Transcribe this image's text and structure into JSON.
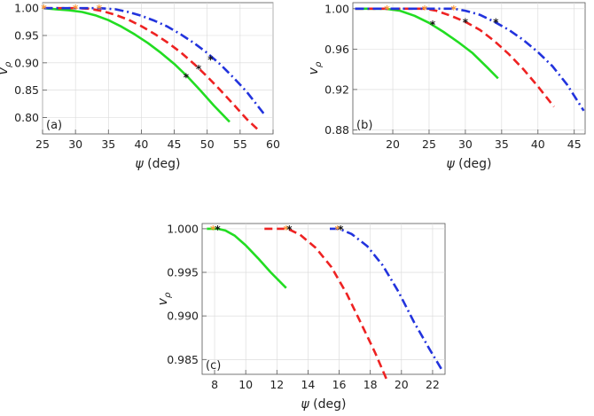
{
  "colors": {
    "green": "#22dd22",
    "red": "#ee2222",
    "blue": "#2233dd",
    "orange_marker": "#ff9933",
    "black_marker": "#111111",
    "grid": "#d8d8d8"
  },
  "chart_data": [
    {
      "panel": "(a)",
      "type": "line",
      "xlabel_symbol": "ψ",
      "xlabel_unit": "(deg)",
      "ylabel": "v_ρ",
      "xlim": [
        25,
        60
      ],
      "ylim": [
        0.77,
        1.01
      ],
      "xticks": [
        25,
        30,
        35,
        40,
        45,
        50,
        55,
        60
      ],
      "xtick_labels": [
        "25",
        "30",
        "35",
        "40",
        "45",
        "50",
        "55",
        "60"
      ],
      "yticks": [
        0.8,
        0.85,
        0.9,
        0.95,
        1.0
      ],
      "ytick_labels": [
        "0.80",
        "0.85",
        "0.90",
        "0.95",
        "1.00"
      ],
      "grid": true,
      "series": [
        {
          "color": "green",
          "style": "solid",
          "x": [
            25.2,
            27,
            29,
            31,
            33,
            35,
            37,
            39,
            41,
            43,
            45,
            47,
            49,
            51,
            53.4
          ],
          "y": [
            1.0,
            0.998,
            0.996,
            0.993,
            0.987,
            0.978,
            0.966,
            0.952,
            0.936,
            0.918,
            0.898,
            0.875,
            0.849,
            0.822,
            0.792
          ],
          "orange_star": [
            25.2,
            1.0
          ],
          "black_star": [
            46.8,
            0.875
          ]
        },
        {
          "color": "red",
          "style": "dashed",
          "x": [
            25.2,
            28,
            30,
            32,
            34,
            36,
            38,
            40,
            42,
            44,
            46,
            48,
            50,
            52,
            54,
            56,
            57.6
          ],
          "y": [
            1.0,
            1.0,
            1.0,
            0.999,
            0.995,
            0.988,
            0.979,
            0.967,
            0.953,
            0.937,
            0.919,
            0.898,
            0.875,
            0.85,
            0.824,
            0.797,
            0.779
          ],
          "orange_star": [
            30.0,
            1.0
          ],
          "black_star": [
            48.7,
            0.89
          ]
        },
        {
          "color": "blue",
          "style": "dash-dot",
          "x": [
            25.2,
            30,
            33.6,
            36,
            38,
            40,
            42,
            44,
            46,
            48,
            50,
            52,
            54,
            56,
            58.6
          ],
          "y": [
            1.0,
            1.0,
            1.0,
            0.998,
            0.993,
            0.986,
            0.977,
            0.966,
            0.952,
            0.936,
            0.918,
            0.897,
            0.873,
            0.847,
            0.807
          ],
          "orange_star": [
            33.6,
            1.0
          ],
          "black_star": [
            50.5,
            0.907
          ]
        }
      ]
    },
    {
      "panel": "(b)",
      "type": "line",
      "xlabel_symbol": "ψ",
      "xlabel_unit": "(deg)",
      "ylabel": "v_ρ",
      "xlim": [
        14.5,
        46.5
      ],
      "ylim": [
        0.876,
        1.006
      ],
      "xticks": [
        20,
        25,
        30,
        35,
        40,
        45
      ],
      "xtick_labels": [
        "20",
        "25",
        "30",
        "35",
        "40",
        "45"
      ],
      "yticks": [
        0.88,
        0.92,
        0.96,
        1.0
      ],
      "ytick_labels": [
        "0.88",
        "0.92",
        "0.96",
        "1.00"
      ],
      "grid": true,
      "series": [
        {
          "color": "green",
          "style": "solid",
          "x": [
            14.8,
            17,
            19,
            21,
            23,
            25,
            27,
            29,
            31,
            33,
            34.5
          ],
          "y": [
            1.0,
            1.0,
            1.0,
            0.998,
            0.993,
            0.986,
            0.977,
            0.967,
            0.956,
            0.942,
            0.931
          ],
          "orange_star": [
            19.2,
            1.0
          ],
          "black_star": [
            25.5,
            0.985
          ]
        },
        {
          "color": "red",
          "style": "dashed",
          "x": [
            14.8,
            20,
            24.4,
            26,
            28,
            30,
            32,
            34,
            36,
            38,
            40,
            42.2
          ],
          "y": [
            1.0,
            1.0,
            1.0,
            0.998,
            0.993,
            0.987,
            0.979,
            0.968,
            0.955,
            0.94,
            0.923,
            0.903
          ],
          "orange_star": [
            24.4,
            1.0
          ],
          "black_star": [
            30.0,
            0.987
          ]
        },
        {
          "color": "blue",
          "style": "dash-dot",
          "x": [
            14.8,
            22,
            28.4,
            30,
            32,
            34,
            36,
            38,
            40,
            42,
            44,
            46.3
          ],
          "y": [
            1.0,
            1.0,
            1.0,
            0.998,
            0.994,
            0.987,
            0.979,
            0.969,
            0.957,
            0.943,
            0.925,
            0.899
          ],
          "orange_star": [
            28.4,
            1.0
          ],
          "black_star": [
            34.2,
            0.987
          ]
        }
      ]
    },
    {
      "panel": "(c)",
      "type": "line",
      "xlabel_symbol": "ψ",
      "xlabel_unit": "(deg)",
      "ylabel": "v_ρ",
      "xlim": [
        7.2,
        22.8
      ],
      "ylim": [
        0.9833,
        1.0006
      ],
      "xticks": [
        8,
        10,
        12,
        14,
        16,
        18,
        20,
        22
      ],
      "xtick_labels": [
        "8",
        "10",
        "12",
        "14",
        "16",
        "18",
        "20",
        "22"
      ],
      "yticks": [
        0.985,
        0.99,
        0.995,
        1.0
      ],
      "ytick_labels": [
        "0.985",
        "0.990",
        "0.995",
        "1.000"
      ],
      "grid": true,
      "series": [
        {
          "color": "green",
          "style": "solid",
          "x": [
            7.5,
            8.2,
            8.7,
            9.3,
            10.0,
            10.8,
            11.6,
            12.6
          ],
          "y": [
            1.0,
            1.0,
            0.9998,
            0.9992,
            0.9981,
            0.9966,
            0.995,
            0.9932
          ],
          "orange_star": [
            7.9,
            1.0
          ],
          "black_star": [
            8.2,
            1.0
          ]
        },
        {
          "color": "red",
          "style": "dashed",
          "x": [
            11.2,
            12.0,
            12.7,
            13.5,
            14.5,
            15.5,
            16.5,
            17.5,
            18.3,
            19.1
          ],
          "y": [
            1.0,
            1.0,
            1.0,
            0.9993,
            0.9978,
            0.9956,
            0.9925,
            0.9888,
            0.9858,
            0.9825
          ],
          "orange_star": [
            12.6,
            1.0
          ],
          "black_star": [
            12.8,
            1.0
          ]
        },
        {
          "color": "blue",
          "style": "dash-dot",
          "x": [
            15.4,
            16.0,
            16.8,
            17.8,
            18.8,
            19.8,
            20.8,
            21.8,
            22.6
          ],
          "y": [
            1.0,
            1.0,
            0.9994,
            0.998,
            0.9958,
            0.9928,
            0.9893,
            0.9862,
            0.9838
          ],
          "orange_star": [
            15.9,
            1.0
          ],
          "black_star": [
            16.1,
            1.0
          ]
        }
      ]
    }
  ]
}
